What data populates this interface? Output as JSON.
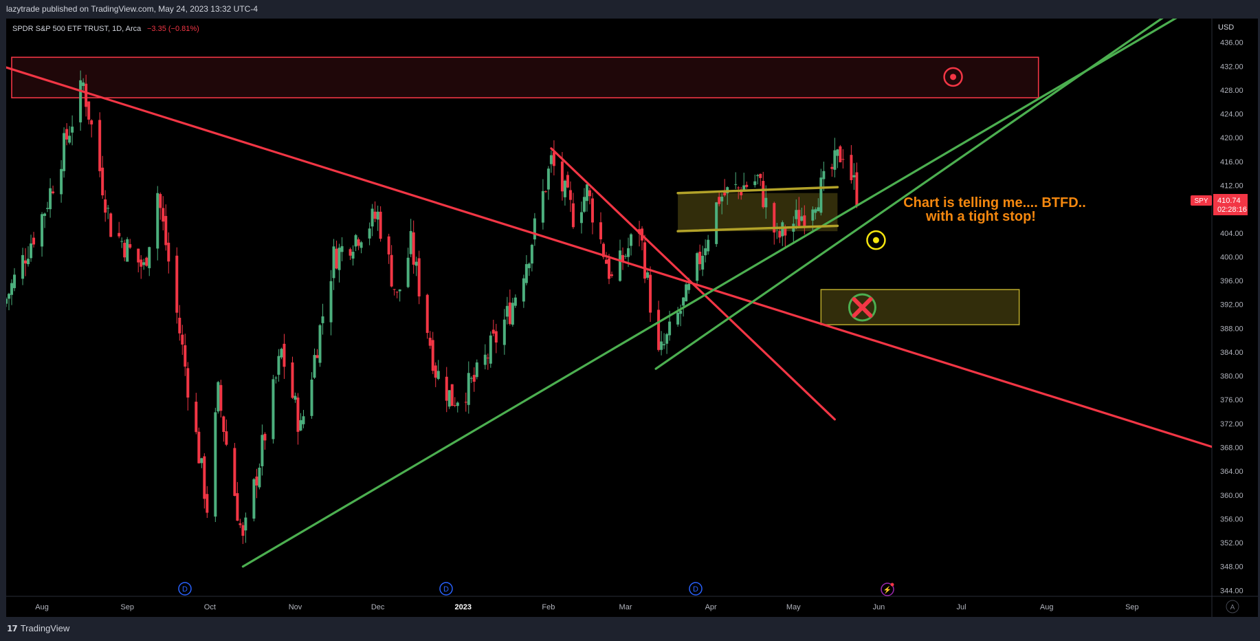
{
  "header": {
    "published_text": "lazytrade published on TradingView.com, May 24, 2023 13:32 UTC-4"
  },
  "legend": {
    "symbol_text": "SPDR S&P 500 ETF TRUST, 1D, Arca",
    "change_text": "−3.35 (−0.81%)",
    "change_color": "#f23645"
  },
  "price_axis": {
    "currency": "USD",
    "ticks": [
      "436.00",
      "432.00",
      "428.00",
      "424.00",
      "420.00",
      "416.00",
      "412.00",
      "408.00",
      "404.00",
      "400.00",
      "396.00",
      "392.00",
      "388.00",
      "384.00",
      "380.00",
      "376.00",
      "372.00",
      "368.00",
      "364.00",
      "360.00",
      "356.00",
      "352.00",
      "348.00",
      "344.00"
    ],
    "last_price": {
      "symbol": "SPY",
      "price": "410.74",
      "countdown": "02:28:16",
      "color": "#f23645"
    },
    "scale_button": "A"
  },
  "time_axis": {
    "labels": [
      "Aug",
      "Sep",
      "Oct",
      "Nov",
      "Dec",
      "2023",
      "Feb",
      "Mar",
      "Apr",
      "May",
      "Jun",
      "Jul",
      "Aug",
      "Sep"
    ]
  },
  "annotation": {
    "line1": "Chart is telling me.... BTFD..",
    "line2": "with a tight stop!",
    "color": "#f5880f"
  },
  "event_markers": [
    {
      "type": "dividend",
      "label": "D"
    },
    {
      "type": "dividend",
      "label": "D"
    },
    {
      "type": "dividend",
      "label": "D"
    },
    {
      "type": "earnings",
      "label": "⚡"
    }
  ],
  "footer": {
    "brand": "TradingView",
    "logo_icon": "tradingview-logo-icon"
  },
  "chart_data": {
    "type": "candlestick",
    "title": "SPDR S&P 500 ETF TRUST, 1D, Arca",
    "ylabel": "USD",
    "ylim": [
      343,
      440
    ],
    "x_range": [
      "2022-07-19",
      "2023-09-30"
    ],
    "colors": {
      "up": "#4caf7d",
      "down": "#f23645"
    },
    "ohlc_monthly_approx": [
      {
        "date": "2022-07-20",
        "open": 392,
        "high": 398,
        "low": 388,
        "close": 394
      },
      {
        "date": "2022-08-16",
        "open": 428,
        "high": 431,
        "low": 426,
        "close": 429
      },
      {
        "date": "2022-09-30",
        "open": 362,
        "high": 367,
        "low": 357,
        "close": 358
      },
      {
        "date": "2022-10-13",
        "open": 352,
        "high": 367,
        "low": 348,
        "close": 365
      },
      {
        "date": "2022-12-01",
        "open": 407,
        "high": 410,
        "low": 402,
        "close": 406
      },
      {
        "date": "2022-12-28",
        "open": 378,
        "high": 382,
        "low": 376,
        "close": 377
      },
      {
        "date": "2023-02-02",
        "open": 413,
        "high": 418,
        "low": 411,
        "close": 416
      },
      {
        "date": "2023-03-13",
        "open": 382,
        "high": 385,
        "low": 381,
        "close": 384
      },
      {
        "date": "2023-04-18",
        "open": 413,
        "high": 415,
        "low": 411,
        "close": 413
      },
      {
        "date": "2023-05-19",
        "open": 420,
        "high": 420.5,
        "low": 417,
        "close": 418
      },
      {
        "date": "2023-05-24",
        "open": 411.7,
        "high": 412,
        "low": 408.8,
        "close": 410.74
      }
    ],
    "drawings": [
      {
        "type": "rectangle",
        "name": "target-zone",
        "from": {
          "date": "2022-07-21",
          "price": 433.5
        },
        "to": {
          "date": "2023-07-29",
          "price": 426.7
        },
        "color": "#f23645"
      },
      {
        "type": "rectangle",
        "name": "stop-zone",
        "from": {
          "date": "2023-05-11",
          "price": 394.5
        },
        "to": {
          "date": "2023-07-22",
          "price": 388.6
        },
        "color": "#b2a229"
      },
      {
        "type": "rectangle",
        "name": "consolidation-zone",
        "from": {
          "date": "2023-03-20",
          "price": 410.7
        },
        "to": {
          "date": "2023-05-17",
          "price": 404.3
        },
        "color": "#b2a229"
      },
      {
        "type": "trendline",
        "name": "long-downtrend",
        "from": {
          "date": "2022-07-19",
          "price": 431.8
        },
        "to": {
          "date": "2023-09-30",
          "price": 368.1
        },
        "color": "#f23645"
      },
      {
        "type": "trendline",
        "name": "short-downtrend",
        "from": {
          "date": "2023-02-02",
          "price": 418.2
        },
        "to": {
          "date": "2023-05-16",
          "price": 372.7
        },
        "color": "#f23645"
      },
      {
        "type": "trendline",
        "name": "uptrend-lower",
        "from": {
          "date": "2022-10-13",
          "price": 348.0
        },
        "to": {
          "date": "2023-09-24",
          "price": 442.0
        },
        "color": "#4caf50"
      },
      {
        "type": "trendline",
        "name": "uptrend-upper",
        "from": {
          "date": "2023-03-12",
          "price": 381.2
        },
        "to": {
          "date": "2023-09-18",
          "price": 442.0
        },
        "color": "#4caf50"
      },
      {
        "type": "trendline",
        "name": "channel-top",
        "from": {
          "date": "2023-03-20",
          "price": 410.7
        },
        "to": {
          "date": "2023-05-17",
          "price": 411.7
        },
        "color": "#b2a229"
      },
      {
        "type": "trendline",
        "name": "channel-bottom",
        "from": {
          "date": "2023-03-20",
          "price": 404.3
        },
        "to": {
          "date": "2023-05-17",
          "price": 405.2
        },
        "color": "#b2a229"
      }
    ],
    "markers": [
      {
        "type": "target-icon",
        "date": "2023-06-28",
        "price": 430.2,
        "color": "#f23645"
      },
      {
        "type": "entry-icon",
        "date": "2023-05-31",
        "price": 402.8,
        "color": "#f5e50f"
      },
      {
        "type": "stop-icon",
        "date": "2023-05-26",
        "price": 391.5,
        "color": "#f23645"
      }
    ]
  }
}
